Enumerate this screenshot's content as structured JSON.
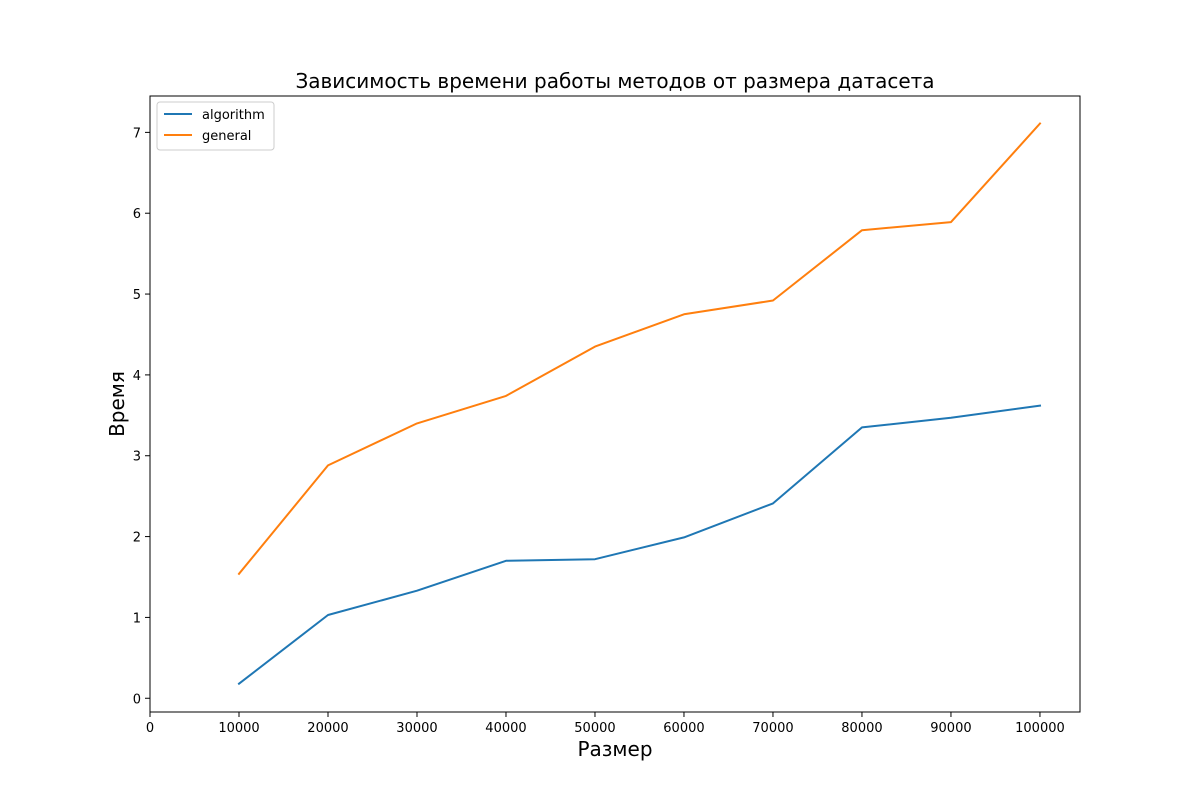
{
  "chart_data": {
    "type": "line",
    "title": "Зависимость времени работы методов от размера датасета",
    "xlabel": "Размер",
    "ylabel": "Время",
    "xlim": [
      0,
      104500
    ],
    "ylim": [
      -0.17,
      7.45
    ],
    "xticks": [
      0,
      10000,
      20000,
      30000,
      40000,
      50000,
      60000,
      70000,
      80000,
      90000,
      100000
    ],
    "yticks": [
      0,
      1,
      2,
      3,
      4,
      5,
      6,
      7
    ],
    "x": [
      10000,
      20000,
      30000,
      40000,
      50000,
      60000,
      70000,
      80000,
      90000,
      100000
    ],
    "series": [
      {
        "name": "algorithm",
        "color": "#1f77b4",
        "values": [
          0.18,
          1.03,
          1.33,
          1.7,
          1.72,
          1.99,
          2.41,
          3.35,
          3.47,
          3.62
        ]
      },
      {
        "name": "general",
        "color": "#ff7f0e",
        "values": [
          1.54,
          2.88,
          3.4,
          3.74,
          4.35,
          4.75,
          4.92,
          5.79,
          5.89,
          7.11
        ]
      }
    ],
    "grid": false,
    "legend_position": "top-left"
  }
}
